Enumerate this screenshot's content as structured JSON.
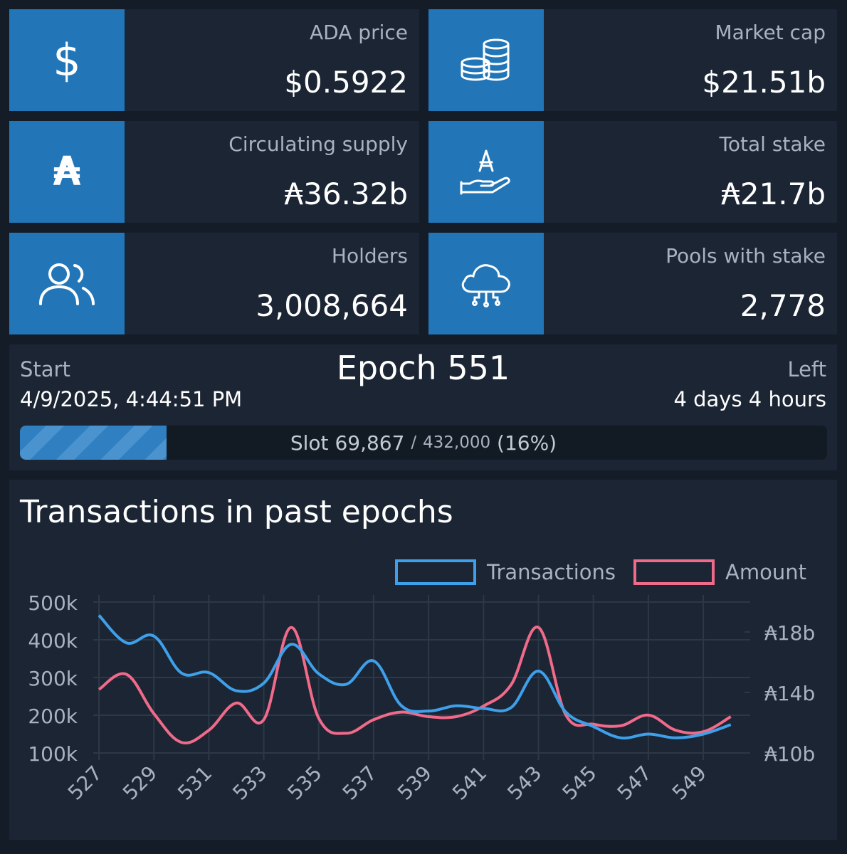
{
  "stats": {
    "ada_price": {
      "label": "ADA price",
      "value": "$0.5922",
      "icon": "dollar-icon"
    },
    "market_cap": {
      "label": "Market cap",
      "value": "$21.51b",
      "icon": "coins-stack-icon"
    },
    "circulating_supply": {
      "label": "Circulating supply",
      "value": "₳36.32b",
      "icon": "ada-icon"
    },
    "total_stake": {
      "label": "Total stake",
      "value": "₳21.7b",
      "icon": "hand-ada-icon"
    },
    "holders": {
      "label": "Holders",
      "value": "3,008,664",
      "icon": "users-icon"
    },
    "pools_with_stake": {
      "label": "Pools with stake",
      "value": "2,778",
      "icon": "cloud-network-icon"
    }
  },
  "icon_glyphs": {
    "dollar": "$",
    "ada": "₳"
  },
  "epoch": {
    "title": "Epoch 551",
    "start_label": "Start",
    "start_date": "4/9/2025, 4:44:51 PM",
    "left_label": "Left",
    "left_value": "4 days 4 hours",
    "slot_label": "Slot 69,867",
    "slot_separator": "/",
    "slot_total": "432,000",
    "slot_percent": "(16%)",
    "progress_fraction": 0.16
  },
  "colors": {
    "background": "#141c28",
    "card": "#1b2533",
    "icon_box": "#2276b8",
    "transactions_line": "#3ea0ea",
    "amount_line": "#f06a8a"
  },
  "chart_data": {
    "type": "line",
    "title": "Transactions in past epochs",
    "x": [
      527,
      528,
      529,
      530,
      531,
      532,
      533,
      534,
      535,
      536,
      537,
      538,
      539,
      540,
      541,
      542,
      543,
      544,
      545,
      546,
      547,
      548,
      549,
      550
    ],
    "x_tick_labels": [
      "527",
      "529",
      "531",
      "533",
      "535",
      "537",
      "539",
      "541",
      "543",
      "545",
      "547",
      "549"
    ],
    "y_left_ticks": [
      "500k",
      "400k",
      "300k",
      "200k",
      "100k"
    ],
    "y_left_range": [
      100000,
      500000
    ],
    "y_right_ticks": [
      "₳18b",
      "₳14b",
      "₳10b"
    ],
    "y_right_range": [
      10000000000,
      18000000000
    ],
    "legend_position": "top-right",
    "grid": true,
    "series": [
      {
        "name": "Transactions",
        "axis": "left",
        "values": [
          465000,
          392000,
          410000,
          312000,
          313000,
          265000,
          285000,
          388000,
          310000,
          282000,
          344000,
          226000,
          211000,
          225000,
          218000,
          220000,
          317000,
          208000,
          170000,
          140000,
          150000,
          140000,
          150000,
          175000
        ]
      },
      {
        "name": "Amount",
        "axis": "right",
        "values": [
          14200000000.0,
          15200000000.0,
          12600000000.0,
          10700000000.0,
          11500000000.0,
          13300000000.0,
          12200000000.0,
          18300000000.0,
          12300000000.0,
          11300000000.0,
          12200000000.0,
          12700000000.0,
          12400000000.0,
          12400000000.0,
          13100000000.0,
          14500000000.0,
          18300000000.0,
          12500000000.0,
          11900000000.0,
          11800000000.0,
          12500000000.0,
          11500000000.0,
          11400000000.0,
          12400000000.0
        ]
      }
    ]
  }
}
